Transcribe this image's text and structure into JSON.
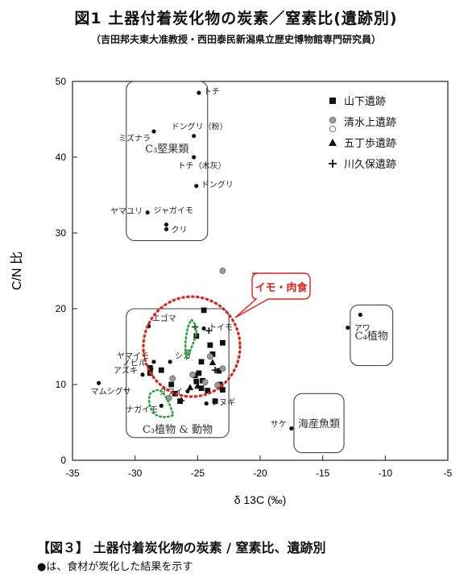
{
  "title": "図1 土器付着炭化物の炭素／窒素比(遺跡別)",
  "subtitle": "（吉田邦夫東大准教授・西田泰民新潟県立歴史博物館専門研究員）",
  "caption": "【図３】 土器付着炭化物の炭素 / 窒素比、遺跡別",
  "note": "●は、食材が炭化した結果を示す",
  "chart_data": {
    "type": "scatter",
    "xlabel": "δ 13C (‰)",
    "ylabel": "C/N 比",
    "xlim": [
      -35,
      -5
    ],
    "ylim": [
      0,
      50
    ],
    "xticks": [
      "-35",
      "-30",
      "-25",
      "-20",
      "-15",
      "-10",
      "-5"
    ],
    "yticks": [
      "0",
      "10",
      "20",
      "30",
      "40",
      "50"
    ],
    "legend": {
      "placement": "top-right",
      "entries": [
        "山下遺跡",
        "清水上遺跡",
        "五丁歩遺跡",
        "川久保遺跡"
      ]
    },
    "regions": [
      {
        "label": "C₃堅果類",
        "x": [
          -30.7,
          -24.2
        ],
        "y": [
          29,
          50
        ]
      },
      {
        "label": "C₃植物 & 動物",
        "x": [
          -30.7,
          -22.5
        ],
        "y": [
          3,
          20
        ]
      },
      {
        "label": "C₄植物",
        "x": [
          -12.8,
          -9.4
        ],
        "y": [
          12.5,
          20.5
        ]
      },
      {
        "label": "海産魚類",
        "x": [
          -17.3,
          -13.3
        ],
        "y": [
          1,
          8.8
        ]
      }
    ],
    "highlight_label": "イモ・肉食",
    "reference_points": [
      {
        "label": "トチ",
        "x": -24.9,
        "y": 48.5
      },
      {
        "label": "ドングリ（粉）",
        "x": -25.3,
        "y": 42.8
      },
      {
        "label": "ミズナラ",
        "x": -28.5,
        "y": 43.4
      },
      {
        "label": "トチ（木灰）",
        "x": -25.3,
        "y": 40.0
      },
      {
        "label": "ドングリ",
        "x": -25.1,
        "y": 36.2
      },
      {
        "label": "ヤマユリ",
        "x": -29.0,
        "y": 32.7
      },
      {
        "label": "ジャガイモ",
        "x": -27.5,
        "y": 31.1
      },
      {
        "label": "クリ",
        "x": -27.5,
        "y": 30.5
      },
      {
        "label": "エゴマ",
        "x": -28.9,
        "y": 17.7
      },
      {
        "label": "トイモ",
        "x": -24.5,
        "y": 17.4
      },
      {
        "label": "ヤマイモ",
        "x": -28.5,
        "y": 13.0
      },
      {
        "label": "シカ",
        "x": -27.2,
        "y": 13.0
      },
      {
        "label": "ノビル",
        "x": -28.7,
        "y": 12.1
      },
      {
        "label": "アズキ",
        "x": -29.4,
        "y": 11.3
      },
      {
        "label": "マムシグサ",
        "x": -32.9,
        "y": 10.2
      },
      {
        "label": "クワイ",
        "x": -25.8,
        "y": 9.1
      },
      {
        "label": "ナガイモ",
        "x": -27.9,
        "y": 7.2
      },
      {
        "label": "クヌギ",
        "x": -24.3,
        "y": 7.5
      },
      {
        "label": "アワ",
        "x": -13.0,
        "y": 17.5
      },
      {
        "label": "",
        "x": -12.0,
        "y": 19.2
      },
      {
        "label": "サケ",
        "x": -17.5,
        "y": 4.2
      }
    ],
    "series": [
      {
        "name": "山下遺跡",
        "marker": "square",
        "points": [
          [
            -24.5,
            19.8
          ],
          [
            -25.1,
            16.4
          ],
          [
            -24.0,
            15.2
          ],
          [
            -23.0,
            15.5
          ],
          [
            -23.8,
            14.0
          ],
          [
            -24.7,
            13.0
          ],
          [
            -23.3,
            11.8
          ],
          [
            -25.2,
            11.2
          ],
          [
            -24.9,
            11.5
          ],
          [
            -27.9,
            11.9
          ],
          [
            -28.8,
            11.5
          ],
          [
            -25.1,
            10.4
          ],
          [
            -24.6,
            10.5
          ],
          [
            -23.2,
            10.0
          ],
          [
            -27.1,
            10.0
          ],
          [
            -24.7,
            9.5
          ],
          [
            -24.2,
            9.2
          ],
          [
            -23.0,
            9.3
          ],
          [
            -26.8,
            8.8
          ],
          [
            -26.4,
            7.8
          ],
          [
            -23.6,
            7.8
          ],
          [
            -28.8,
            12.2
          ]
        ]
      },
      {
        "name": "清水上遺跡",
        "marker": "circle-gray",
        "points": [
          [
            -25.8,
            14.2
          ],
          [
            -24.0,
            13.7
          ],
          [
            -23.0,
            12.1
          ],
          [
            -25.4,
            11.3
          ],
          [
            -27.0,
            10.8
          ],
          [
            -24.4,
            10.3
          ],
          [
            -23.4,
            9.9
          ],
          [
            -27.3,
            8.2
          ],
          [
            -23.0,
            25.0
          ]
        ]
      },
      {
        "name": "五丁歩遺跡",
        "marker": "triangle",
        "points": [
          [
            -23.8,
            12.9
          ],
          [
            -25.0,
            9.8
          ],
          [
            -25.6,
            9.6
          ]
        ]
      },
      {
        "name": "川久保遺跡",
        "marker": "plus",
        "points": [
          [
            -24.1,
            17.1
          ],
          [
            -25.2,
            17.6
          ],
          [
            -23.6,
            11.9
          ],
          [
            -26.3,
            7.9
          ],
          [
            -23.1,
            9.4
          ]
        ]
      }
    ]
  }
}
